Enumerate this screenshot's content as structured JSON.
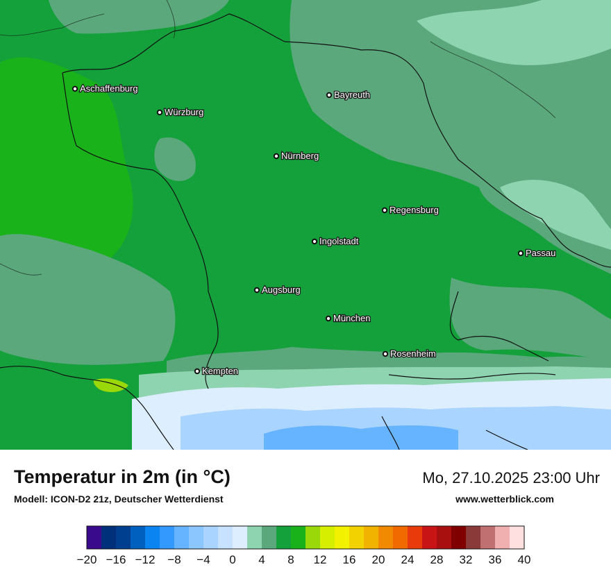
{
  "header": {
    "title": "Temperatur in 2m (in °C)",
    "model": "Modell: ICON-D2 21z, Deutscher Wetterdienst",
    "datetime": "Mo, 27.10.2025 23:00 Uhr",
    "website": "www.wetterblick.com"
  },
  "cities": [
    "Aschaffenburg",
    "Würzburg",
    "Bayreuth",
    "Nürnberg",
    "Regensburg",
    "Ingolstadt",
    "Passau",
    "Augsburg",
    "München",
    "Rosenheim",
    "Kempten"
  ],
  "legend": {
    "ticks": [
      "−20",
      "−16",
      "−12",
      "−8",
      "−4",
      "0",
      "4",
      "8",
      "12",
      "16",
      "20",
      "24",
      "28",
      "32",
      "36",
      "40"
    ],
    "colors": [
      "#3a0a8c",
      "#00307a",
      "#003f8f",
      "#0060c0",
      "#0a84f0",
      "#3399ff",
      "#66b3ff",
      "#8cc6ff",
      "#a8d4ff",
      "#c6e2ff",
      "#ddeeff",
      "#8fd4b0",
      "#5aa87c",
      "#14a03a",
      "#1ab21a",
      "#9ad80a",
      "#d6ee00",
      "#f2f200",
      "#f2d200",
      "#f2b200",
      "#f28a00",
      "#f06a00",
      "#e83a0a",
      "#c81414",
      "#a80f0f",
      "#800000",
      "#8b3a3a",
      "#c07070",
      "#f0b0b0",
      "#ffe0e0"
    ]
  },
  "colors": {
    "mild_green": "#14a03a",
    "warm_green": "#1ab21a",
    "grey_green": "#5aa87c",
    "light_mint": "#8fd4b0",
    "pale_blue": "#ddeeff",
    "light_blue": "#a8d4ff",
    "mid_blue": "#66b3ff",
    "yellow_green": "#9ad80a"
  }
}
